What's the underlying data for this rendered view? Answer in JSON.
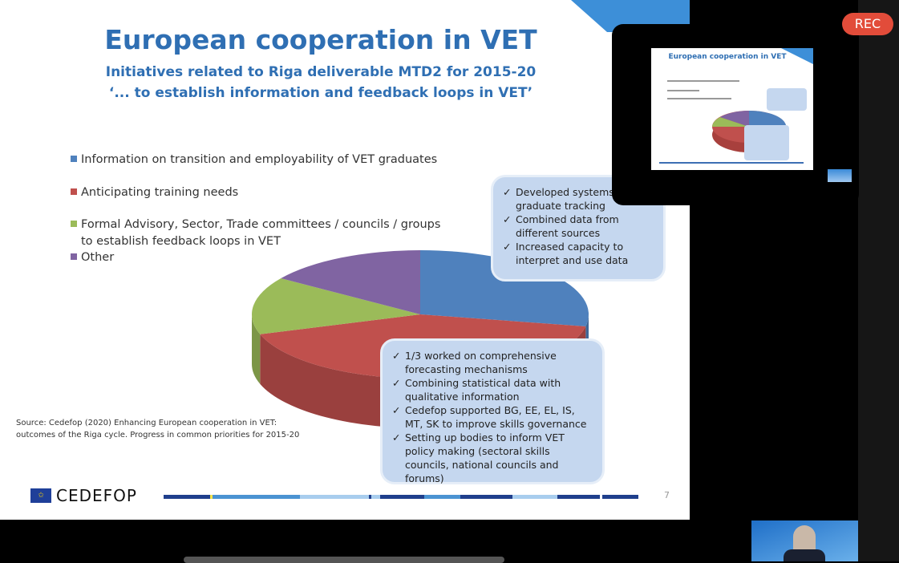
{
  "slide": {
    "title": "European cooperation in VET",
    "subtitle1": "Initiatives related to Riga deliverable MTD2 for 2015-20",
    "subtitle2": "‘... to establish information and feedback loops in VET’",
    "legend": [
      {
        "label": "Information on transition and employability of VET graduates",
        "color": "#4f81bd"
      },
      {
        "label": "Anticipating training needs",
        "color": "#c0504d"
      },
      {
        "label": "Formal Advisory, Sector, Trade  committees / councils / groups to establish feedback loops in VET",
        "color": "#9bbb59"
      },
      {
        "label": "Other",
        "color": "#8064a2"
      }
    ],
    "callout_top": [
      "Developed systems of graduate tracking",
      "Combined data from different sources",
      "Increased capacity to interpret and use data"
    ],
    "callout_bottom": [
      "1/3 worked on comprehensive forecasting mechanisms",
      "Combining statistical data with qualitative information",
      "Cedefop supported BG, EE, EL, IS, MT, SK to improve skills governance",
      "Setting up bodies to inform VET policy making (sectoral skills councils, national councils and forums)"
    ],
    "source": "Source: Cedefop (2020) Enhancing European cooperation in VET: outcomes of the Riga cycle. Progress in common priorities for 2015-20",
    "logo_text": "CEDEFOP",
    "page_number": "7"
  },
  "chart_data": {
    "type": "pie",
    "style": "3d",
    "categories": [
      "Information on transition and employability of VET graduates",
      "Anticipating training needs",
      "Formal Advisory, Sector, Trade  committees / councils / groups to establish feedback loops in VET",
      "Other"
    ],
    "values": [
      0.28,
      0.42,
      0.145,
      0.155
    ],
    "colors": [
      "#4f81bd",
      "#c0504d",
      "#9bbb59",
      "#8064a2"
    ],
    "legend_position": "top-left"
  },
  "meeting": {
    "rec_label": "REC"
  }
}
